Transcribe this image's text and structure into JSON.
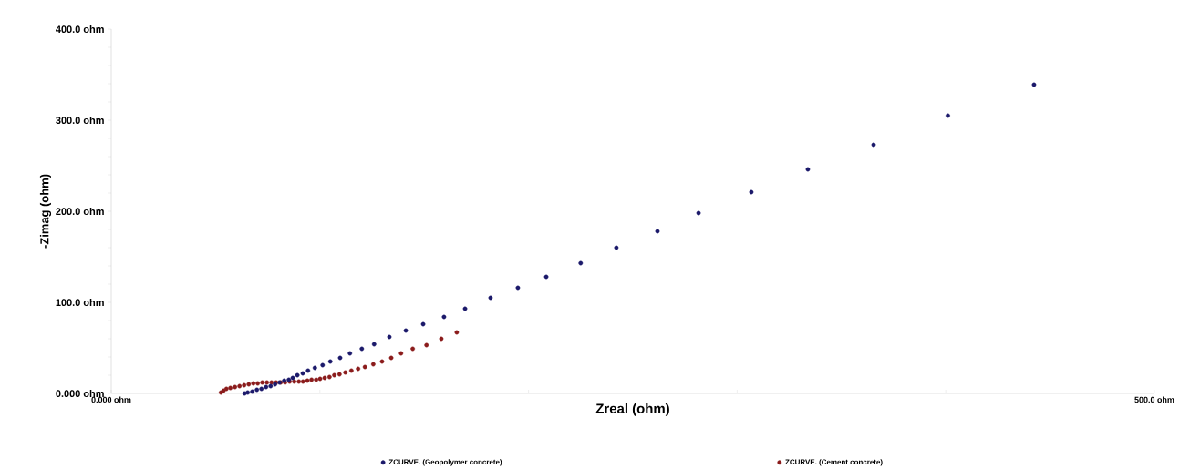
{
  "chart_data": {
    "type": "scatter",
    "xlabel": "Zreal (ohm)",
    "ylabel": "-Zimag (ohm)",
    "xlim": [
      0,
      500
    ],
    "ylim": [
      0,
      400
    ],
    "xticks": [
      {
        "value": 0,
        "label": "0.000 ohm"
      },
      {
        "value": 100,
        "label": null
      },
      {
        "value": 200,
        "label": null
      },
      {
        "value": 300,
        "label": null
      },
      {
        "value": 400,
        "label": null
      },
      {
        "value": 500,
        "label": "500.0 ohm"
      }
    ],
    "yticks": [
      {
        "value": 0,
        "label": "0.000 ohm"
      },
      {
        "value": 20,
        "label": null
      },
      {
        "value": 40,
        "label": null
      },
      {
        "value": 60,
        "label": null
      },
      {
        "value": 80,
        "label": null
      },
      {
        "value": 100,
        "label": "100.0 ohm"
      },
      {
        "value": 120,
        "label": null
      },
      {
        "value": 140,
        "label": null
      },
      {
        "value": 160,
        "label": null
      },
      {
        "value": 180,
        "label": null
      },
      {
        "value": 200,
        "label": "200.0 ohm"
      },
      {
        "value": 220,
        "label": null
      },
      {
        "value": 240,
        "label": null
      },
      {
        "value": 260,
        "label": null
      },
      {
        "value": 280,
        "label": null
      },
      {
        "value": 300,
        "label": "300.0 ohm"
      },
      {
        "value": 320,
        "label": null
      },
      {
        "value": 340,
        "label": null
      },
      {
        "value": 360,
        "label": null
      },
      {
        "value": 380,
        "label": null
      },
      {
        "value": 400,
        "label": "400.0 ohm"
      }
    ],
    "marker": "circle",
    "legend": "bottom",
    "series": [
      {
        "name": "ZCURVE. (Geopolymer concrete)",
        "color": "#1c1a6b",
        "x": [
          63.9,
          65.4,
          67.6,
          69.8,
          72.0,
          74.2,
          76.4,
          78.5,
          80.7,
          82.9,
          85.1,
          87.0,
          89.2,
          91.8,
          94.3,
          97.6,
          101.3,
          105.0,
          109.7,
          114.4,
          120.1,
          126.0,
          133.3,
          141.2,
          149.5,
          159.5,
          169.6,
          181.8,
          194.9,
          208.5,
          225.0,
          242.1,
          261.8,
          281.5,
          306.8,
          333.9,
          365.4,
          401.0,
          442.3
        ],
        "values": [
          0,
          1,
          2,
          4,
          5,
          7,
          8,
          10,
          12,
          14,
          15,
          17,
          20,
          22,
          25,
          28,
          31,
          35,
          39,
          44,
          49,
          54,
          62,
          69,
          76,
          84,
          93,
          105,
          116,
          128,
          143,
          160,
          178,
          198,
          221,
          246,
          273,
          305,
          339
        ]
      },
      {
        "name": "ZCURVE. (Cement concrete)",
        "color": "#8b1c1c",
        "x": [
          52.6,
          53.8,
          55.2,
          57.1,
          59.3,
          61.5,
          63.7,
          65.9,
          68.1,
          70.2,
          72.4,
          74.6,
          76.8,
          79.0,
          81.2,
          83.3,
          85.5,
          87.7,
          89.9,
          91.9,
          94.0,
          96.0,
          98.2,
          100.1,
          102.3,
          104.6,
          106.9,
          109.4,
          112.2,
          115.1,
          118.3,
          121.6,
          125.6,
          129.8,
          134.2,
          138.9,
          144.5,
          151.1,
          158.2,
          165.6
        ],
        "values": [
          1,
          3,
          5,
          6,
          7,
          8,
          9,
          10,
          11,
          11,
          12,
          12,
          12,
          12,
          12,
          12,
          13,
          13,
          13,
          13,
          14,
          15,
          15,
          16,
          17,
          18,
          20,
          21,
          23,
          25,
          27,
          29,
          32,
          35,
          39,
          44,
          49,
          53,
          60,
          67
        ]
      }
    ]
  }
}
